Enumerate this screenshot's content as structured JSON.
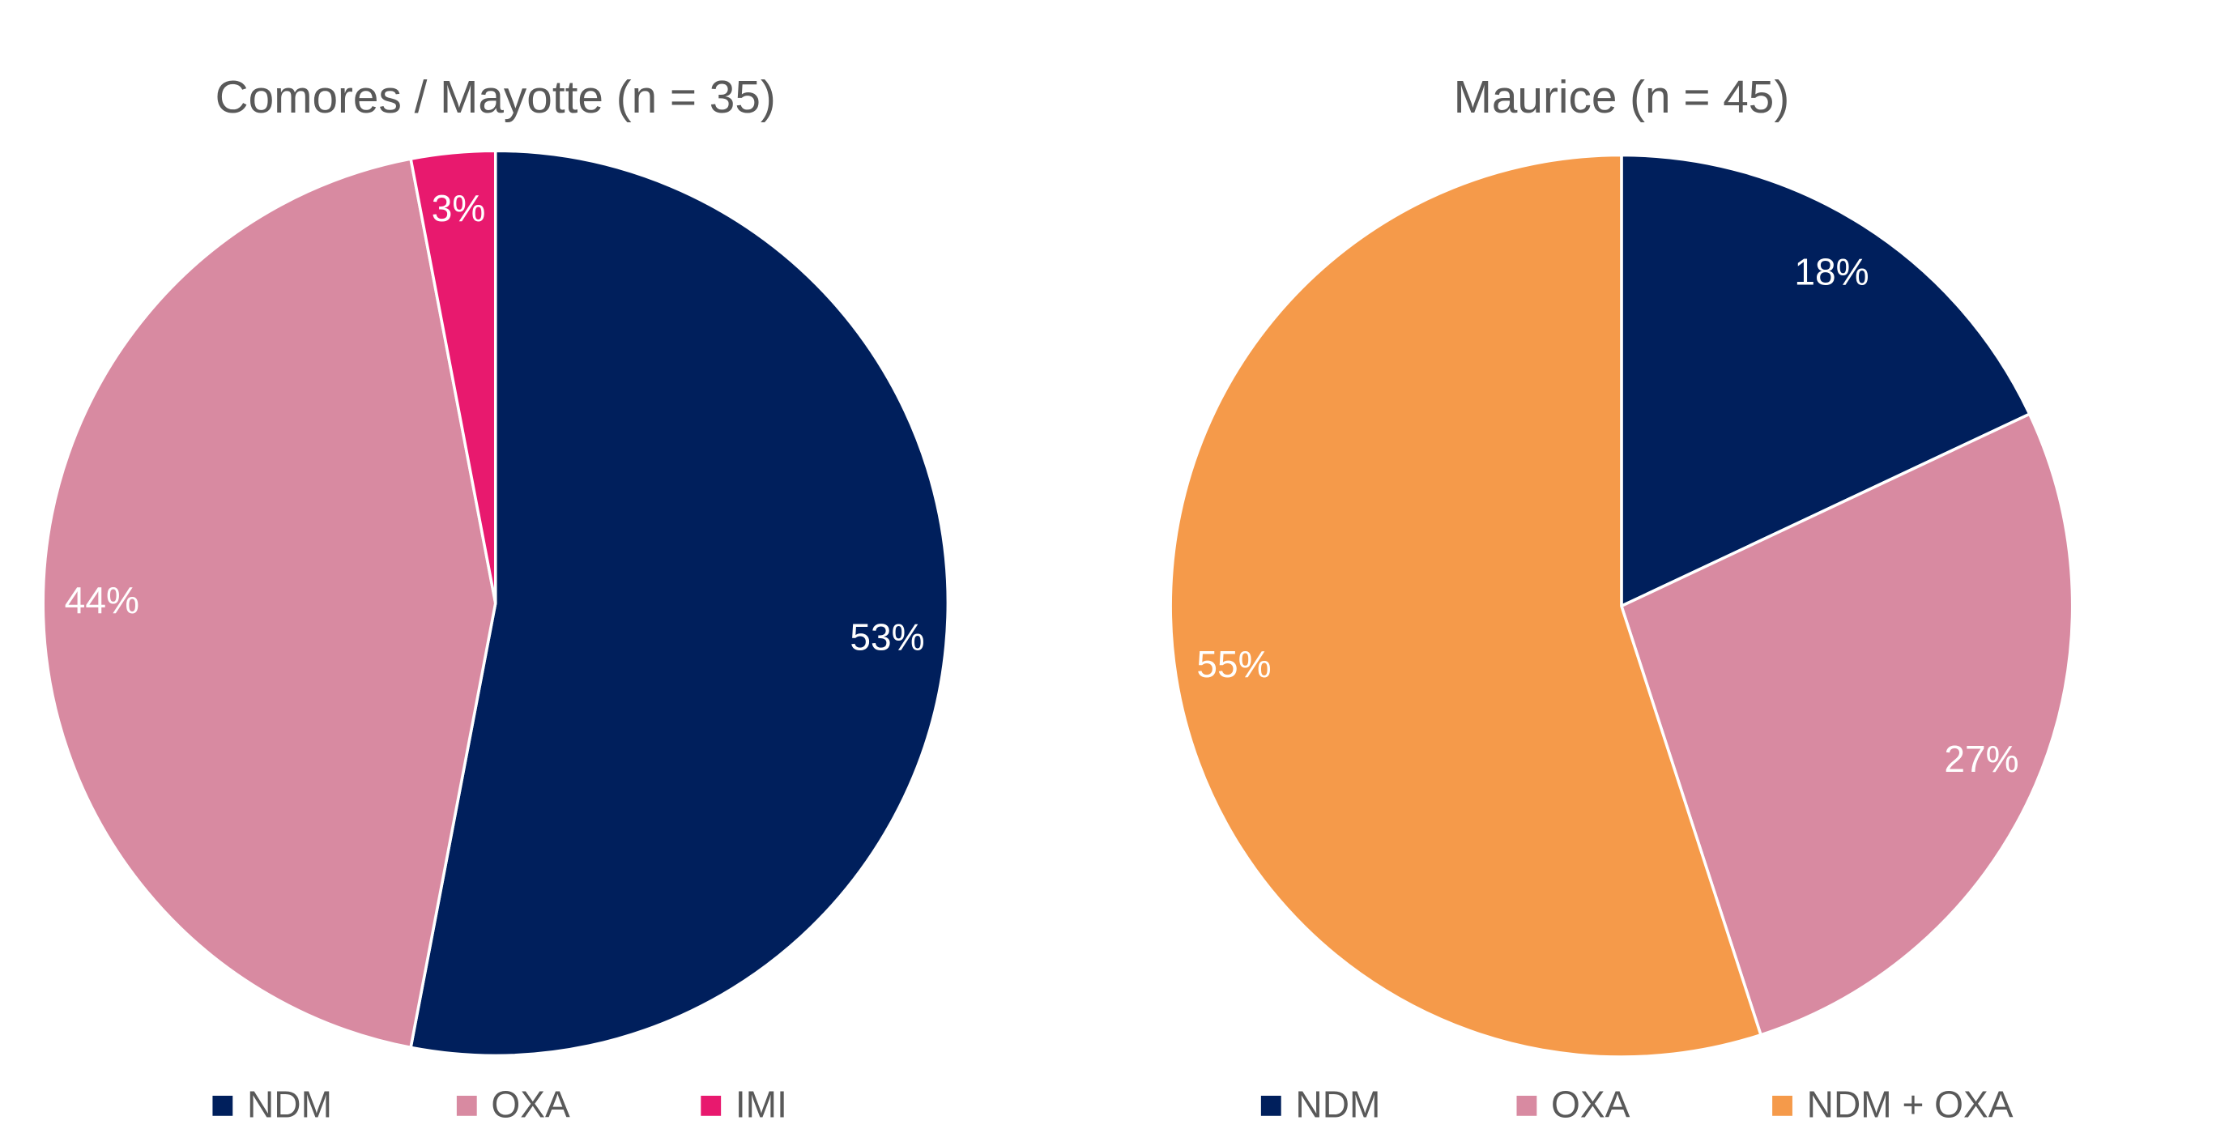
{
  "chart_data": [
    {
      "type": "pie",
      "title": "Comores / Mayotte (n = 35)",
      "categories": [
        "NDM",
        "OXA",
        "IMI"
      ],
      "values": [
        53,
        44,
        3
      ],
      "value_labels": [
        "53%",
        "44%",
        "3%"
      ],
      "colors": [
        "#001f5c",
        "#d88aa1",
        "#e8196e"
      ]
    },
    {
      "type": "pie",
      "title": "Maurice (n = 45)",
      "categories": [
        "NDM",
        "OXA",
        "NDM + OXA"
      ],
      "values": [
        18,
        27,
        55
      ],
      "value_labels": [
        "18%",
        "27%",
        "55%"
      ],
      "colors": [
        "#001f5c",
        "#d88aa1",
        "#f59a4a"
      ]
    }
  ]
}
